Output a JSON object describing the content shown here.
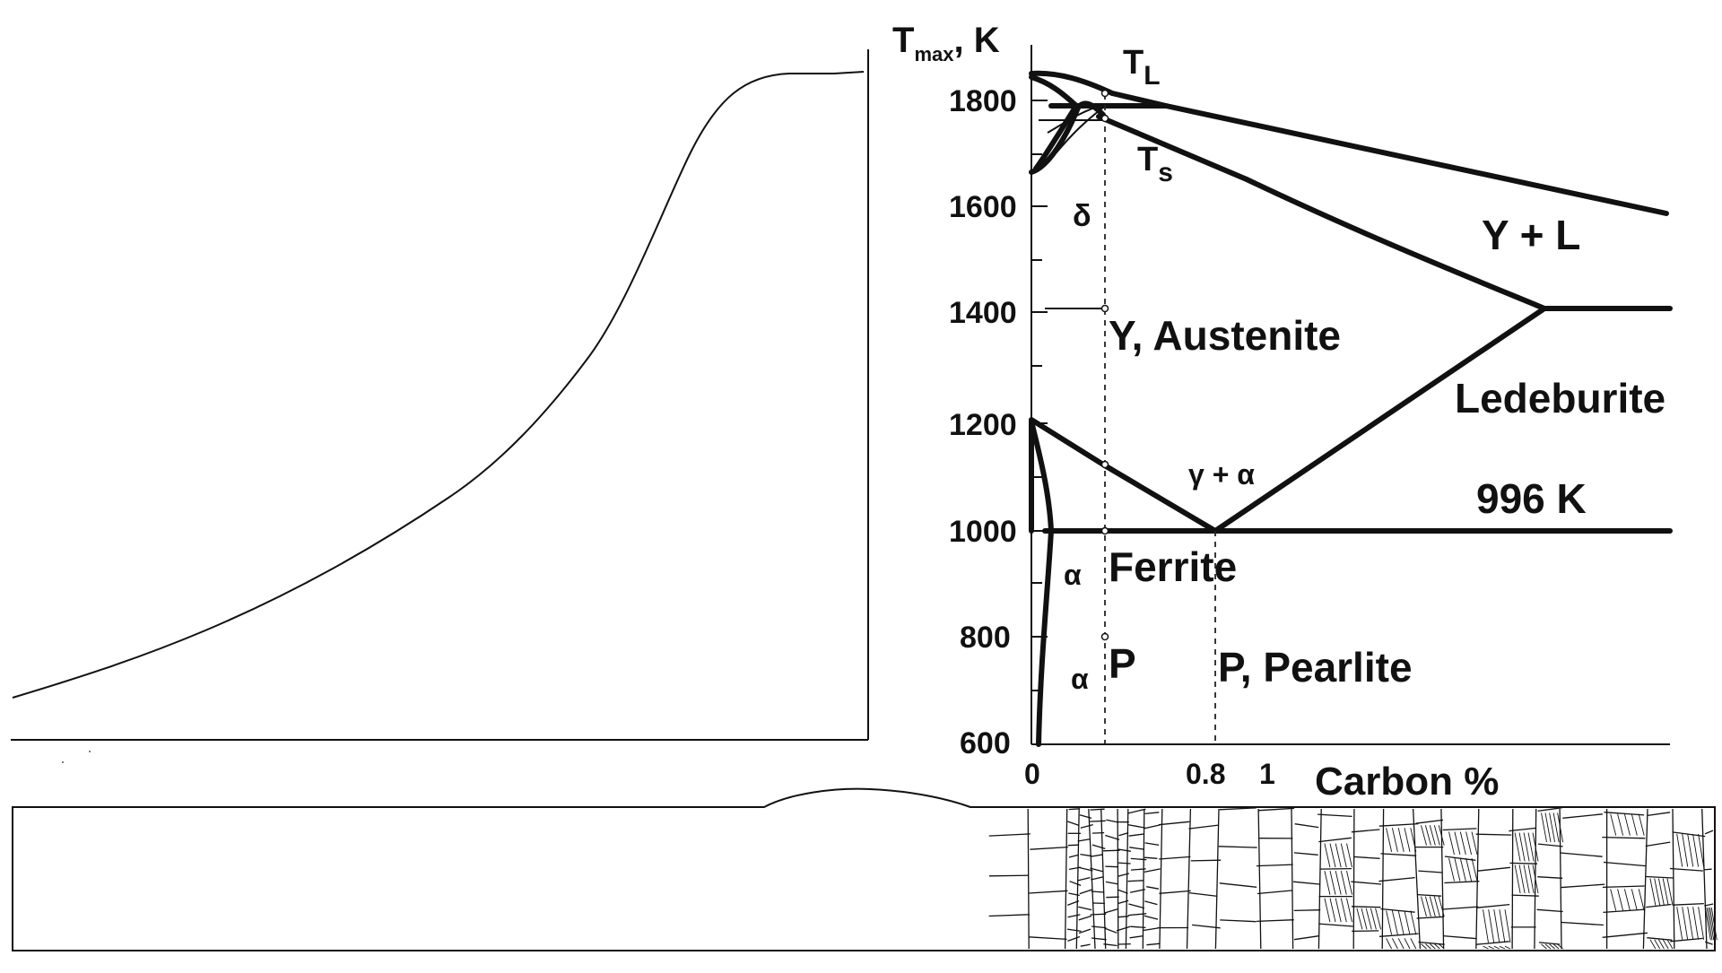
{
  "diagram": {
    "y_axis_title_main": "T",
    "y_axis_title_sub": "max",
    "y_axis_title_unit": ", K",
    "y_ticks": [
      "1800",
      "1600",
      "1400",
      "1200",
      "1000",
      "800",
      "600"
    ],
    "x_ticks": [
      "0",
      "0.8",
      "1"
    ],
    "x_axis_title": "Carbon %",
    "labels": {
      "tl_main": "T",
      "tl_sub": "L",
      "ts_main": "T",
      "ts_sub": "s",
      "delta": "δ",
      "austenite": "Y, Austenite",
      "gamma_liquid": "Y + L",
      "ledeburite": "Ledeburite",
      "gamma_alpha": "γ + α",
      "eutectoid_temp": "996 K",
      "alpha_upper": "α",
      "ferrite": "Ferrite",
      "alpha_lower": "α",
      "p_short": "P",
      "pearlite": "P, Pearlite"
    }
  }
}
